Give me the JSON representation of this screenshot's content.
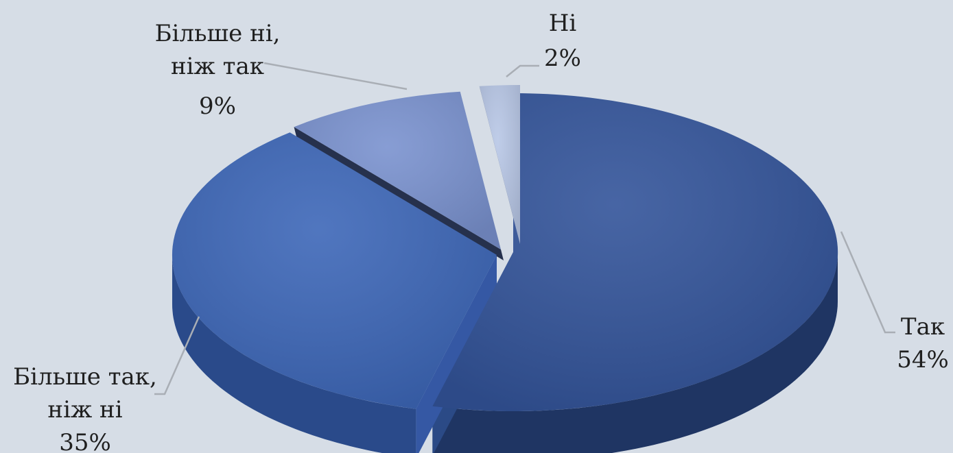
{
  "chart_data": {
    "type": "pie",
    "style": "3d-exploded",
    "title": "",
    "categories": [
      "Так",
      "Більше так, ніж ні",
      "Більше ні, ніж так",
      "Ні"
    ],
    "values": [
      54,
      35,
      9,
      2
    ],
    "value_labels": [
      "54%",
      "35%",
      "9%",
      "2%"
    ],
    "label_lines": [
      [
        "Так"
      ],
      [
        "Більше так,",
        "ніж ні"
      ],
      [
        "Більше ні,",
        "ніж так"
      ],
      [
        "Ні"
      ]
    ],
    "colors": [
      "#33549a",
      "#3d67b8",
      "#7a92cf",
      "#b8c7e6"
    ],
    "side_colors": [
      "#1f3563",
      "#2a4a8a",
      "#2e3e63",
      "#5c6f99"
    ],
    "legend": "none"
  }
}
